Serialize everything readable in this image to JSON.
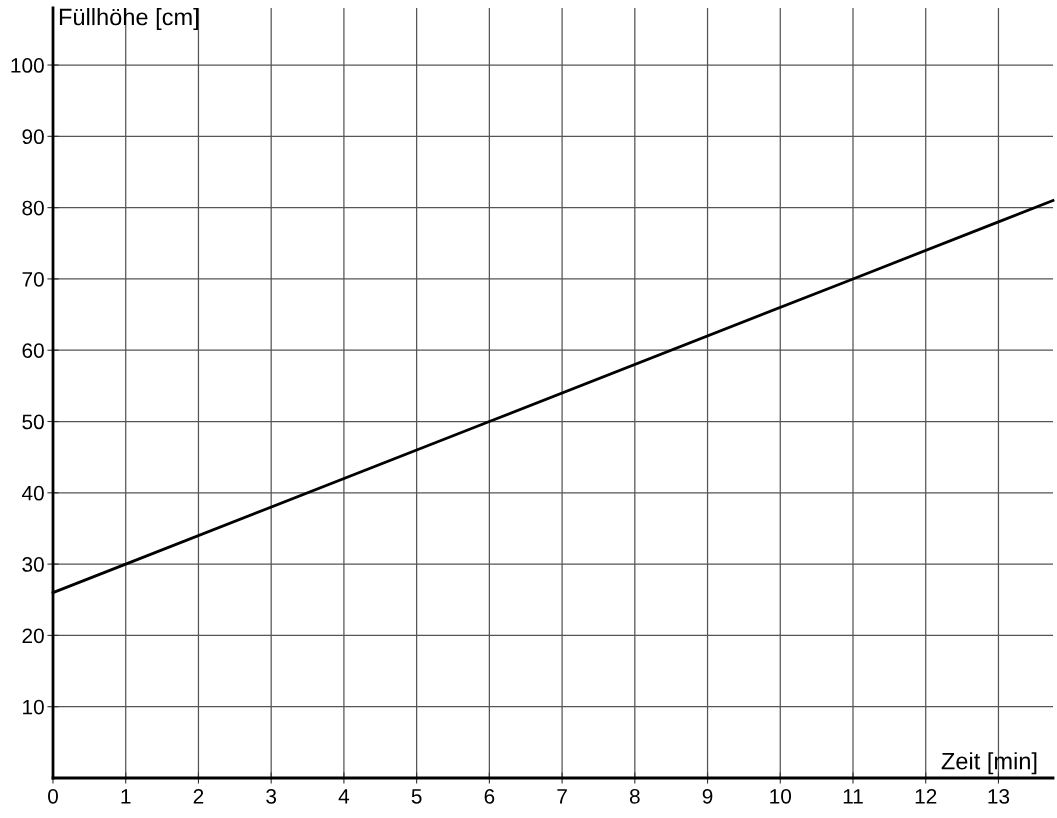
{
  "chart_data": {
    "type": "line",
    "xlabel": "Zeit [min]",
    "ylabel": "Füllhöhe [cm]",
    "x": [
      0,
      1,
      6,
      11,
      13,
      13.75
    ],
    "series": [
      {
        "color": "#000000",
        "values": [
          26,
          30,
          50,
          70,
          78,
          81
        ]
      }
    ],
    "xlim": [
      0,
      13.75
    ],
    "ylim": [
      0,
      108
    ],
    "xticks": [
      0,
      1,
      2,
      3,
      4,
      5,
      6,
      7,
      8,
      9,
      10,
      11,
      12,
      13
    ],
    "yticks": [
      10,
      20,
      30,
      40,
      50,
      60,
      70,
      80,
      90,
      100
    ],
    "grid": true,
    "marker": "none",
    "line_style": "solid"
  }
}
